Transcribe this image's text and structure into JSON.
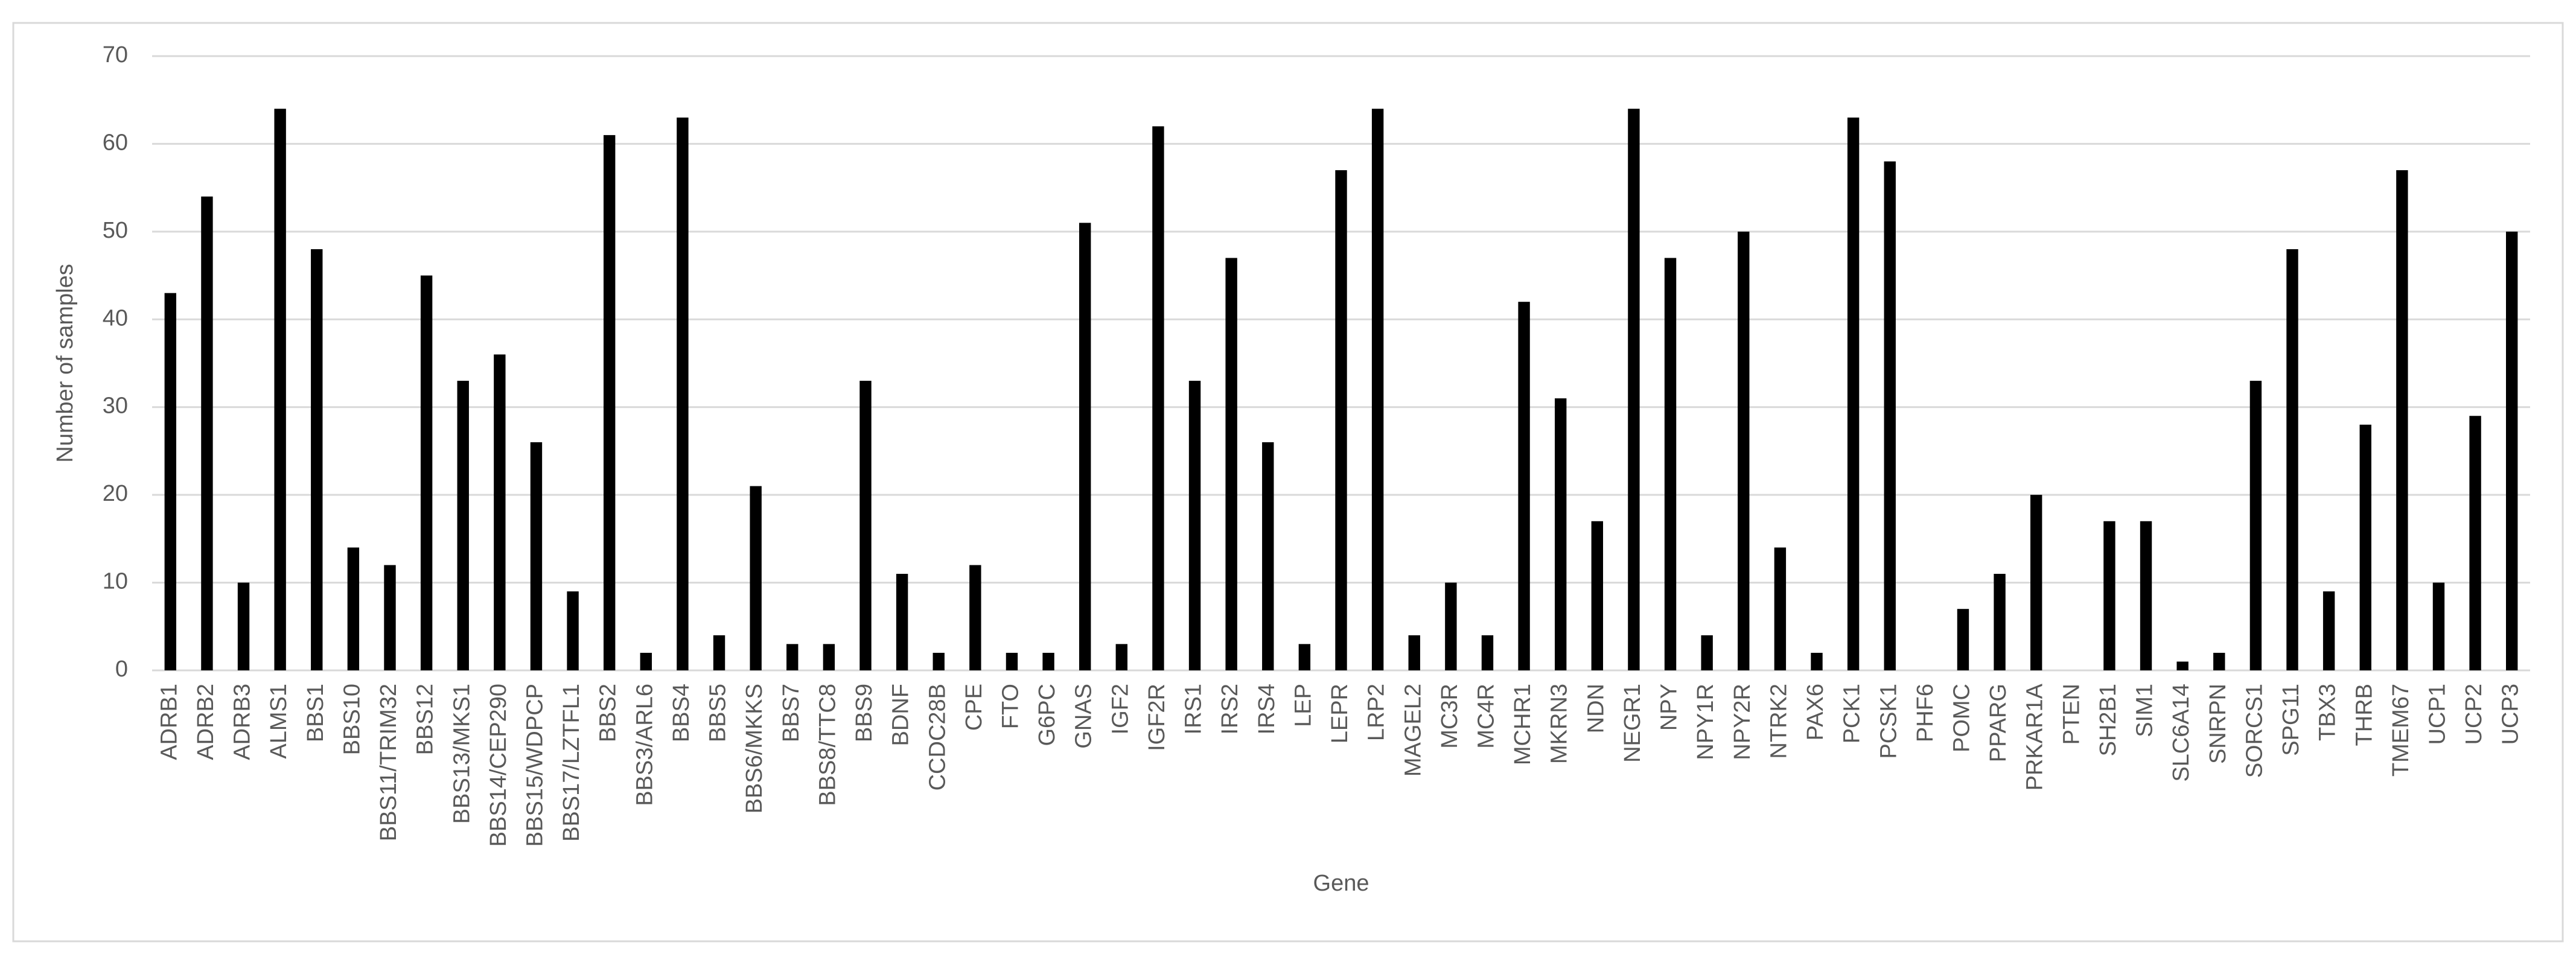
{
  "chart_data": {
    "type": "bar",
    "x_label": "Gene",
    "y_label": "Number of samples",
    "categories": [
      "ADRB1",
      "ADRB2",
      "ADRB3",
      "ALMS1",
      "BBS1",
      "BBS10",
      "BBS11/TRIM32",
      "BBS12",
      "BBS13/MKS1",
      "BBS14/CEP290",
      "BBS15/WDPCP",
      "BBS17/LZTFL1",
      "BBS2",
      "BBS3/ARL6",
      "BBS4",
      "BBS5",
      "BBS6/MKKS",
      "BBS7",
      "BBS8/TTC8",
      "BBS9",
      "BDNF",
      "CCDC28B",
      "CPE",
      "FTO",
      "G6PC",
      "GNAS",
      "IGF2",
      "IGF2R",
      "IRS1",
      "IRS2",
      "IRS4",
      "LEP",
      "LEPR",
      "LRP2",
      "MAGEL2",
      "MC3R",
      "MC4R",
      "MCHR1",
      "MKRN3",
      "NDN",
      "NEGR1",
      "NPY",
      "NPY1R",
      "NPY2R",
      "NTRK2",
      "PAX6",
      "PCK1",
      "PCSK1",
      "PHF6",
      "POMC",
      "PPARG",
      "PRKAR1A",
      "PTEN",
      "SH2B1",
      "SIM1",
      "SLC6A14",
      "SNRPN",
      "SORCS1",
      "SPG11",
      "TBX3",
      "THRB",
      "TMEM67",
      "UCP1",
      "UCP2",
      "UCP3"
    ],
    "values": [
      43,
      54,
      10,
      64,
      48,
      14,
      12,
      45,
      33,
      36,
      26,
      9,
      61,
      2,
      63,
      4,
      21,
      3,
      3,
      33,
      11,
      2,
      12,
      2,
      2,
      51,
      3,
      62,
      33,
      47,
      26,
      3,
      57,
      64,
      4,
      10,
      4,
      42,
      31,
      17,
      64,
      47,
      4,
      50,
      14,
      2,
      63,
      58,
      0,
      7,
      11,
      20,
      0,
      17,
      17,
      1,
      2,
      33,
      48,
      9,
      28,
      57,
      10,
      29,
      50
    ],
    "color": "#000000",
    "ylim": [
      0,
      70
    ],
    "yticks": [
      0,
      10,
      20,
      30,
      40,
      50,
      60,
      70
    ],
    "grid": true
  }
}
